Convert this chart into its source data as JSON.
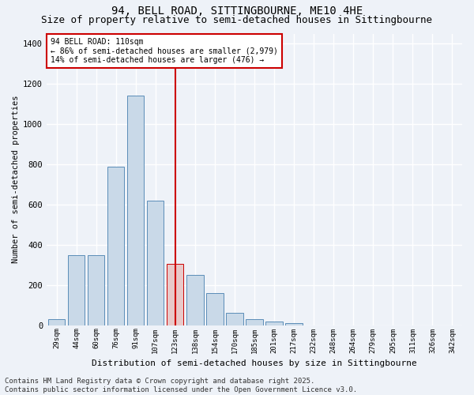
{
  "title": "94, BELL ROAD, SITTINGBOURNE, ME10 4HE",
  "subtitle": "Size of property relative to semi-detached houses in Sittingbourne",
  "xlabel": "Distribution of semi-detached houses by size in Sittingbourne",
  "ylabel": "Number of semi-detached properties",
  "categories": [
    "29sqm",
    "44sqm",
    "60sqm",
    "76sqm",
    "91sqm",
    "107sqm",
    "123sqm",
    "138sqm",
    "154sqm",
    "170sqm",
    "185sqm",
    "201sqm",
    "217sqm",
    "232sqm",
    "248sqm",
    "264sqm",
    "279sqm",
    "295sqm",
    "311sqm",
    "326sqm",
    "342sqm"
  ],
  "values": [
    30,
    350,
    350,
    790,
    1140,
    620,
    305,
    250,
    160,
    60,
    30,
    20,
    10,
    0,
    0,
    0,
    0,
    0,
    0,
    0,
    0
  ],
  "bar_color": "#c9d9e8",
  "bar_edge_color": "#5b8db8",
  "highlight_bar_index": 6,
  "highlight_bar_color": "#e8c9c9",
  "highlight_bar_edge_color": "#cc0000",
  "vline_color": "#cc0000",
  "annotation_text": "94 BELL ROAD: 110sqm\n← 86% of semi-detached houses are smaller (2,979)\n14% of semi-detached houses are larger (476) →",
  "annotation_box_color": "#ffffff",
  "annotation_box_edge_color": "#cc0000",
  "footnote": "Contains HM Land Registry data © Crown copyright and database right 2025.\nContains public sector information licensed under the Open Government Licence v3.0.",
  "ylim": [
    0,
    1450
  ],
  "background_color": "#eef2f8",
  "grid_color": "#ffffff",
  "title_fontsize": 10,
  "subtitle_fontsize": 9,
  "footnote_fontsize": 6.5
}
